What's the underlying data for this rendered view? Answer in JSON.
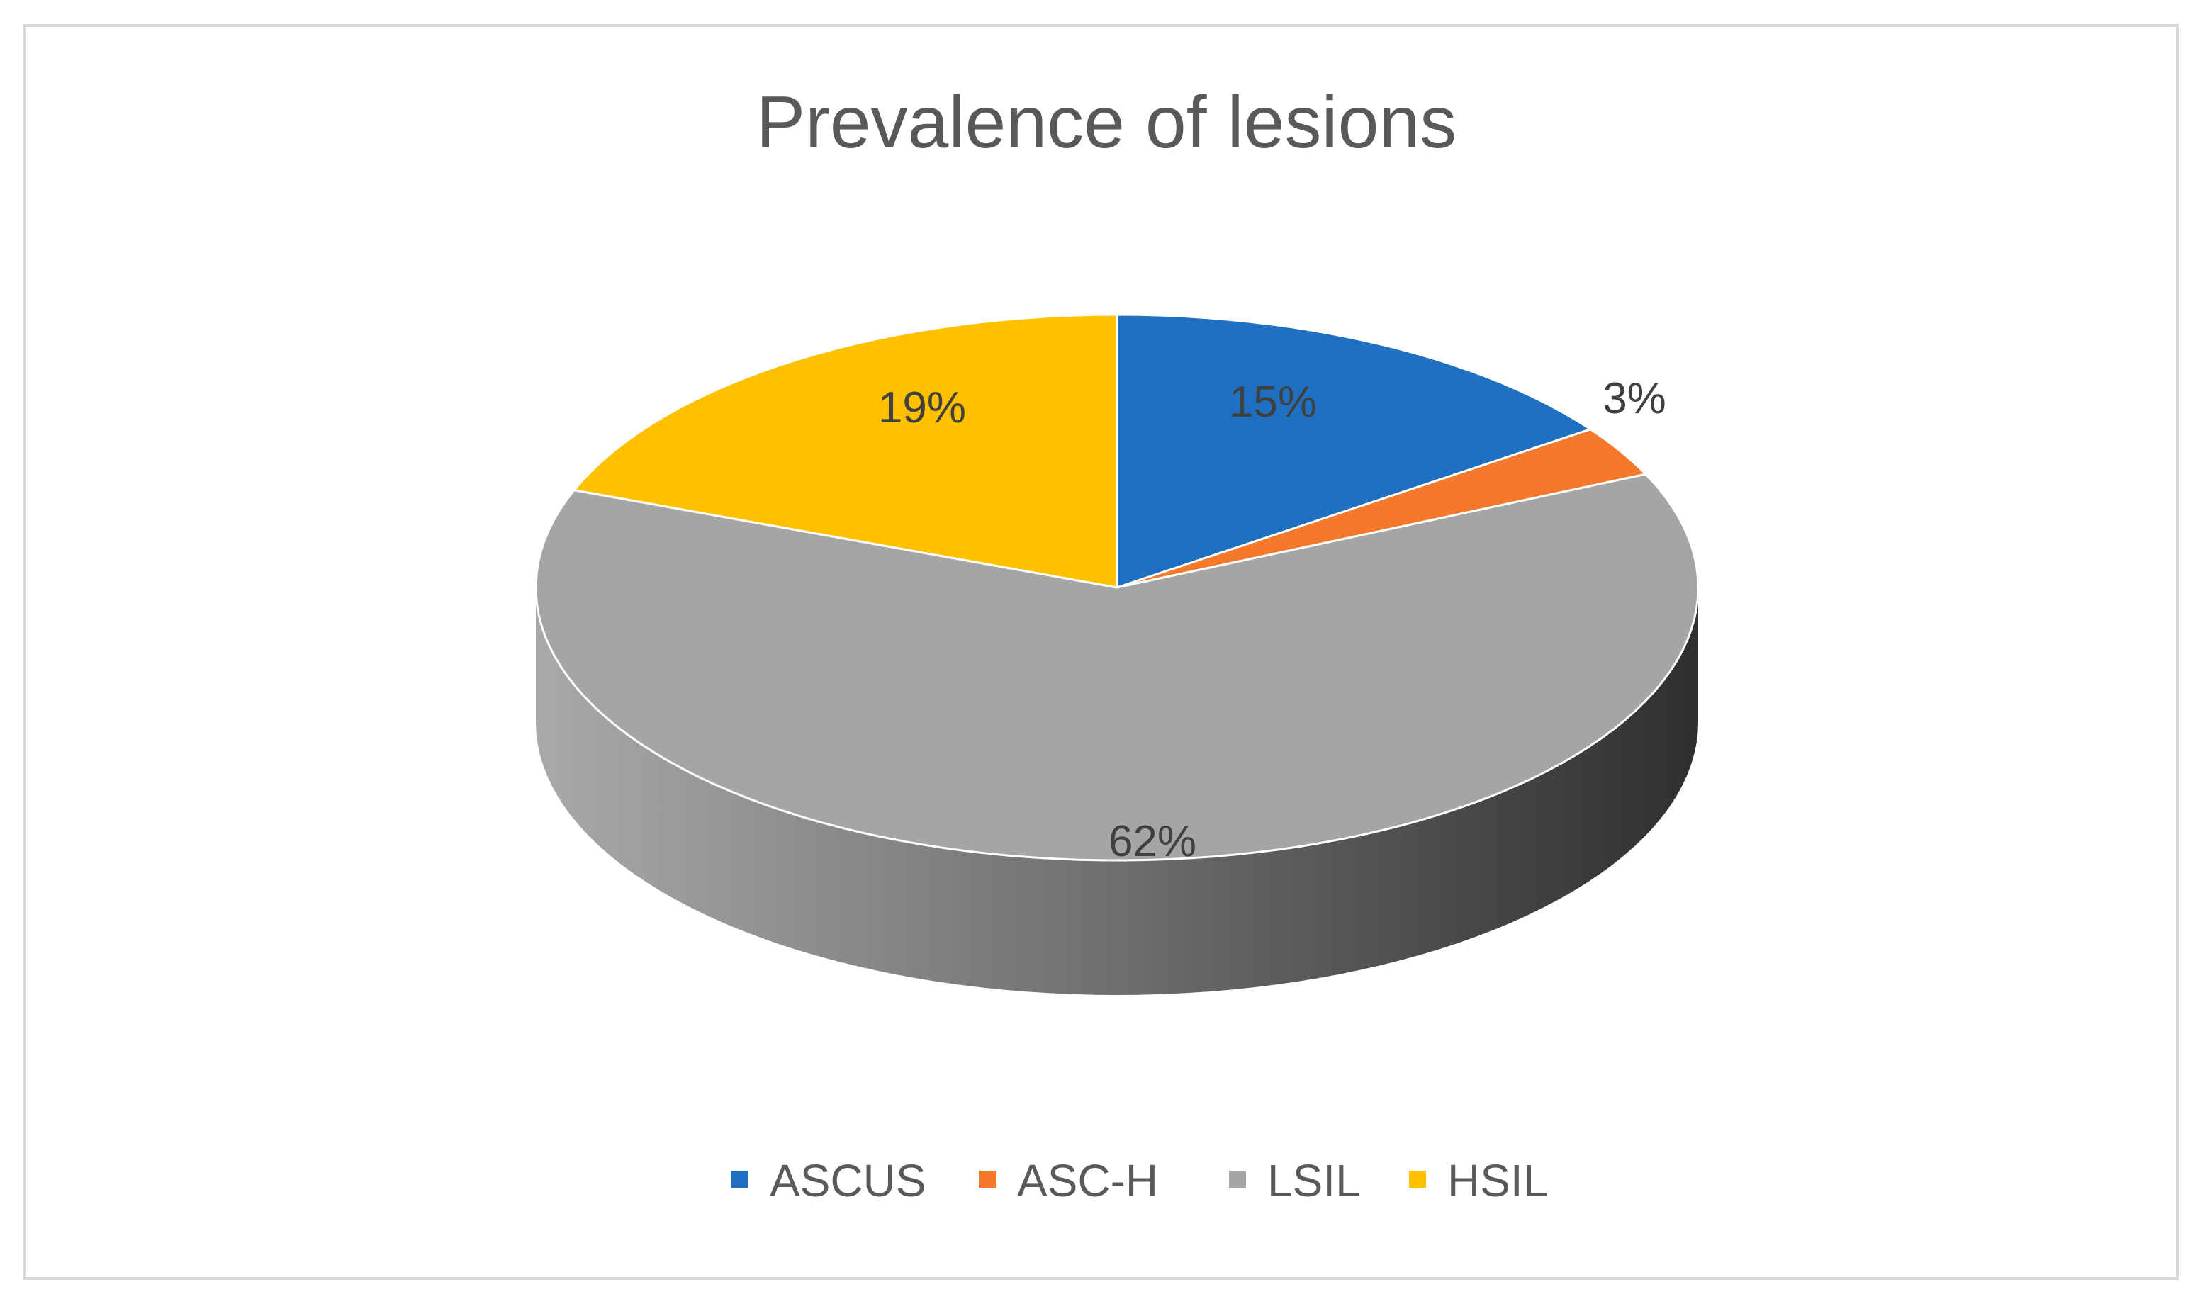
{
  "chart_data": {
    "type": "pie",
    "style": "3d",
    "title": "Prevalence of lesions",
    "categories": [
      "ASCUS",
      "ASC-H",
      "LSIL",
      "HSIL"
    ],
    "values": [
      15,
      3,
      62,
      19
    ],
    "labels": [
      "15%",
      "3%",
      "62%",
      "19%"
    ],
    "colors": [
      "#1f70c1",
      "#f4792b",
      "#a5a5a5",
      "#ffc000"
    ],
    "legend_position": "bottom"
  }
}
